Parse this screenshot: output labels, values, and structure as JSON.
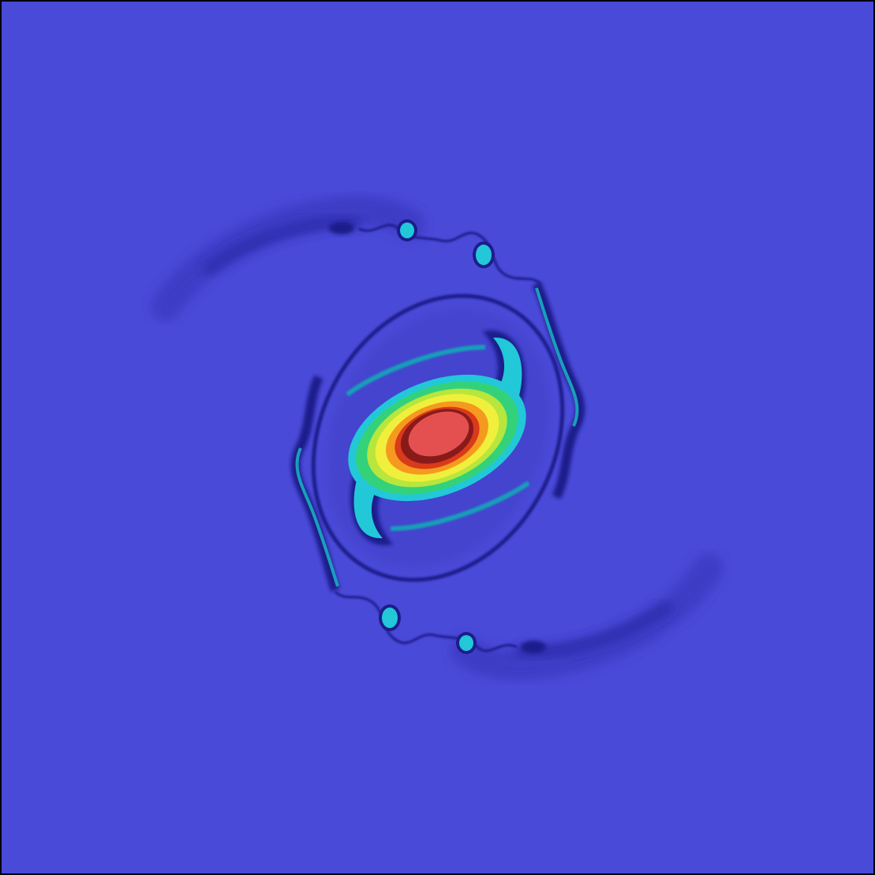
{
  "figure": {
    "kind": "vorticity contour field",
    "colors": {
      "background": "#4a4ad8",
      "deep_blue": "#1c1c8c",
      "navy": "#2b2ba8",
      "cyan": "#22c8d8",
      "teal": "#18a0b8",
      "green": "#33d27a",
      "yellow": "#f0f03c",
      "orange": "#f59a1e",
      "dark_red": "#8a1a1a",
      "red": "#e45050",
      "frame": "#000000"
    }
  }
}
